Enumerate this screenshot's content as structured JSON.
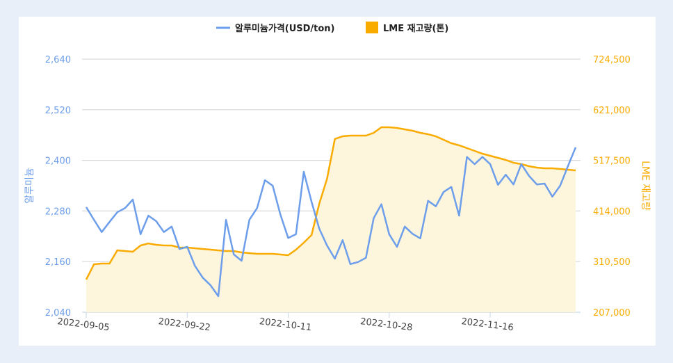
{
  "chart_data": {
    "type": "line",
    "legend_position": "top",
    "grid": true,
    "colors": {
      "price": "#6d9eeb",
      "stock": "#f9ab00",
      "stock_fill": "#fdf5dc",
      "grid": "#d9d9d9"
    },
    "y_left": {
      "label": "알루미늄",
      "range": [
        2040,
        2640
      ],
      "ticks": [
        "2,040",
        "2,160",
        "2,280",
        "2,400",
        "2,520",
        "2,640"
      ],
      "tick_values": [
        2040,
        2160,
        2280,
        2400,
        2520,
        2640
      ]
    },
    "y_right": {
      "label": "LME 재고량",
      "range": [
        207000,
        724500
      ],
      "ticks": [
        "207,000",
        "310,500",
        "414,000",
        "517,500",
        "621,000",
        "724,500"
      ],
      "tick_values": [
        207000,
        310500,
        414000,
        517500,
        621000,
        724500
      ]
    },
    "x_ticks": [
      "2022-09-05",
      "2022-09-22",
      "2022-10-11",
      "2022-10-28",
      "2022-11-16"
    ],
    "x": [
      "2022-09-05",
      "2022-09-06",
      "2022-09-07",
      "2022-09-08",
      "2022-09-09",
      "2022-09-12",
      "2022-09-13",
      "2022-09-14",
      "2022-09-15",
      "2022-09-16",
      "2022-09-19",
      "2022-09-20",
      "2022-09-21",
      "2022-09-22",
      "2022-09-23",
      "2022-09-26",
      "2022-09-27",
      "2022-09-28",
      "2022-09-29",
      "2022-09-30",
      "2022-10-03",
      "2022-10-04",
      "2022-10-05",
      "2022-10-06",
      "2022-10-07",
      "2022-10-10",
      "2022-10-11",
      "2022-10-12",
      "2022-10-13",
      "2022-10-14",
      "2022-10-17",
      "2022-10-18",
      "2022-10-19",
      "2022-10-20",
      "2022-10-21",
      "2022-10-24",
      "2022-10-25",
      "2022-10-26",
      "2022-10-27",
      "2022-10-28",
      "2022-10-31",
      "2022-11-01",
      "2022-11-02",
      "2022-11-03",
      "2022-11-04",
      "2022-11-07",
      "2022-11-08",
      "2022-11-09",
      "2022-11-10",
      "2022-11-11",
      "2022-11-14",
      "2022-11-15",
      "2022-11-16",
      "2022-11-17",
      "2022-11-18",
      "2022-11-21",
      "2022-11-22",
      "2022-11-23",
      "2022-11-24",
      "2022-11-25",
      "2022-11-28",
      "2022-11-29",
      "2022-11-30",
      "2022-12-01"
    ],
    "series": [
      {
        "name": "알루미늄가격(USD/ton)",
        "axis": "left",
        "type": "line",
        "values": [
          2289,
          2259,
          2230,
          2254,
          2277,
          2287,
          2307,
          2225,
          2269,
          2256,
          2230,
          2243,
          2190,
          2195,
          2150,
          2122,
          2104,
          2078,
          2259,
          2177,
          2162,
          2259,
          2287,
          2353,
          2340,
          2271,
          2216,
          2225,
          2373,
          2302,
          2238,
          2198,
          2167,
          2211,
          2154,
          2159,
          2169,
          2263,
          2296,
          2225,
          2195,
          2243,
          2226,
          2215,
          2304,
          2291,
          2325,
          2337,
          2269,
          2408,
          2391,
          2408,
          2391,
          2342,
          2366,
          2343,
          2391,
          2363,
          2343,
          2345,
          2314,
          2340,
          2386,
          2431
        ]
      },
      {
        "name": "LME 재고량(톤)",
        "axis": "right",
        "type": "area",
        "values": [
          273800,
          305100,
          306500,
          306500,
          333500,
          332100,
          330700,
          343500,
          347700,
          344900,
          343500,
          343500,
          339200,
          339200,
          337800,
          336400,
          335000,
          333500,
          332100,
          332100,
          329300,
          327800,
          326400,
          326400,
          326400,
          325000,
          323600,
          335000,
          349200,
          364800,
          428800,
          480000,
          561000,
          566700,
          568100,
          568100,
          568100,
          573800,
          585200,
          585200,
          583800,
          580900,
          578100,
          573800,
          571000,
          566700,
          559600,
          552500,
          548200,
          542500,
          536800,
          531200,
          526900,
          522600,
          518400,
          512700,
          509800,
          505600,
          502700,
          501300,
          501300,
          499900,
          498500,
          497000
        ]
      }
    ]
  }
}
